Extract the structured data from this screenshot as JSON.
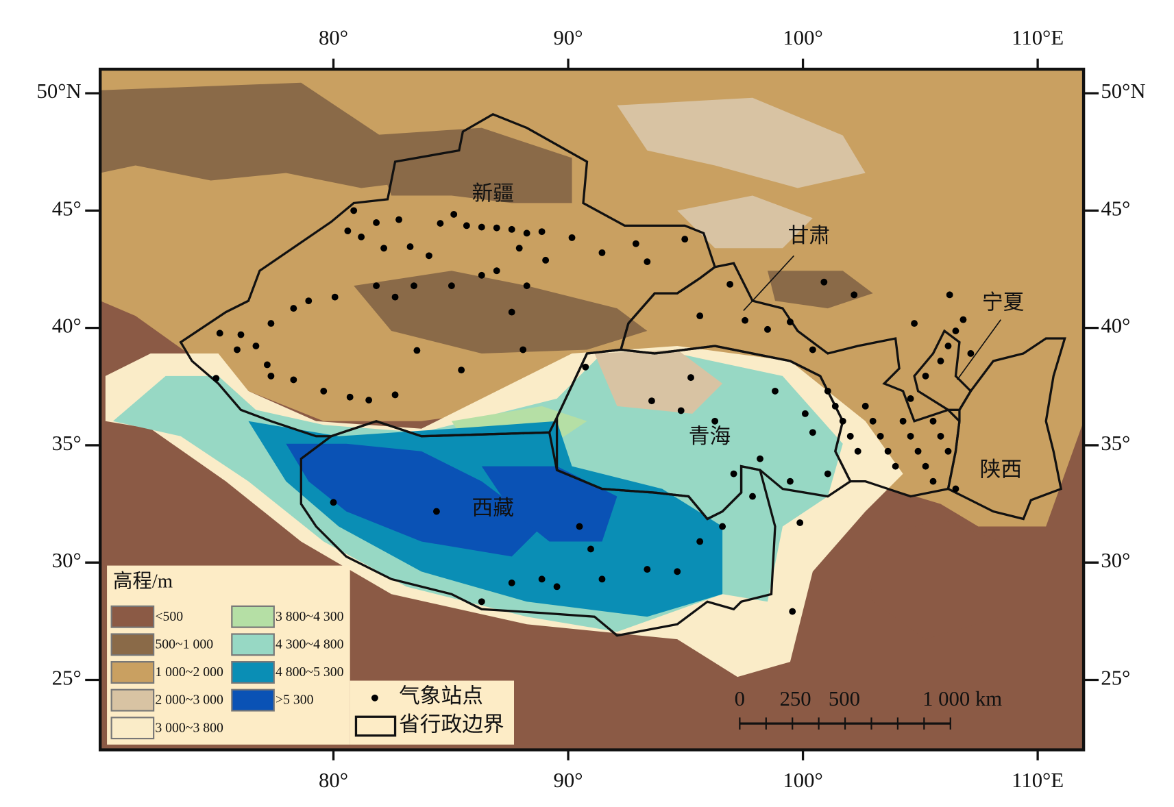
{
  "map": {
    "lon_ticks": [
      {
        "value": 80,
        "label": "80°"
      },
      {
        "value": 90,
        "label": "90°"
      },
      {
        "value": 100,
        "label": "100°"
      },
      {
        "value": 110,
        "label": "110°E"
      }
    ],
    "lat_ticks": [
      {
        "value": 25,
        "label": "25°"
      },
      {
        "value": 30,
        "label": "30°"
      },
      {
        "value": 35,
        "label": "35°"
      },
      {
        "value": 40,
        "label": "40°"
      },
      {
        "value": 45,
        "label": "45°"
      },
      {
        "value": 50,
        "label": "50°N"
      }
    ],
    "provinces": [
      "新疆",
      "甘肃",
      "宁夏",
      "青海",
      "陕西",
      "西藏"
    ],
    "legend": {
      "title": "高程/m",
      "items": [
        {
          "label": "<500",
          "color": "#8b5a45"
        },
        {
          "label": "500~1 000",
          "color": "#8a6a48"
        },
        {
          "label": "1 000~2 000",
          "color": "#c9a061"
        },
        {
          "label": "2 000~3 000",
          "color": "#d8c3a3"
        },
        {
          "label": "3 000~3 800",
          "color": "#faecc8"
        },
        {
          "label": "3 800~4 300",
          "color": "#b5dfa5"
        },
        {
          "label": "4 300~4 800",
          "color": "#97d8c4"
        },
        {
          "label": "4 800~5 300",
          "color": "#0a8eb5"
        },
        {
          "label": ">5 300",
          "color": "#0a52b5"
        }
      ],
      "stations": "气象站点",
      "boundary": "省行政边界"
    },
    "scale_bar": [
      "0",
      "250",
      "500",
      "1 000 km"
    ]
  }
}
